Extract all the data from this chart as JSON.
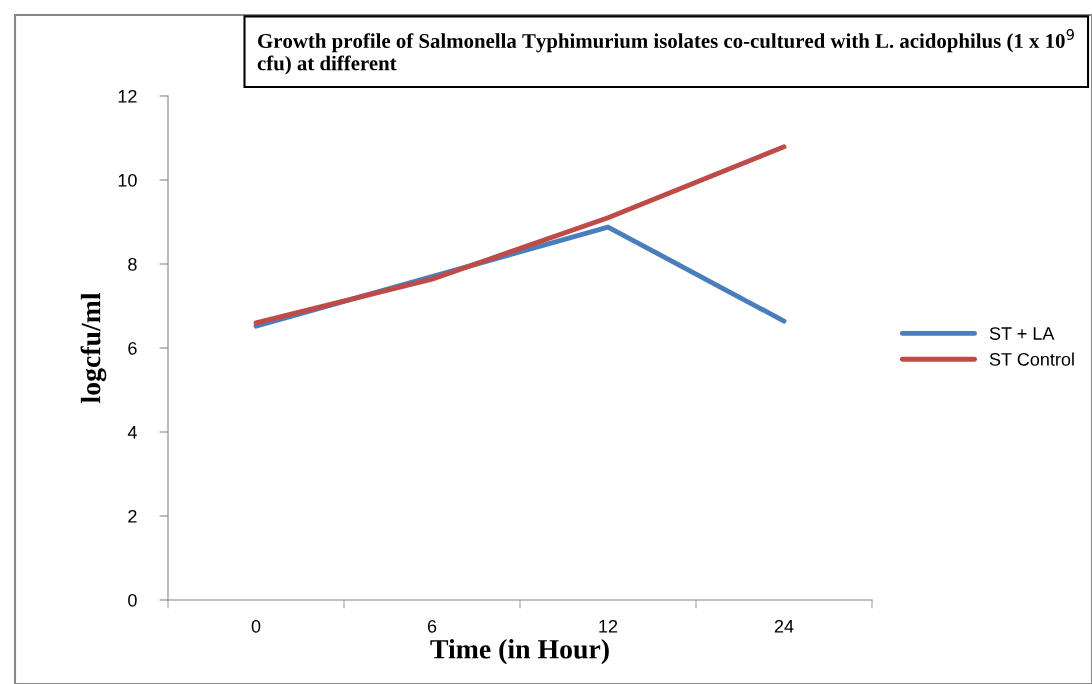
{
  "chart_data": {
    "type": "line",
    "title": "Growth profile of Salmonella Typhimurium isolates co-cultured with L. acidophilus (1 x 10$^{9}$ cfu) at different",
    "xlabel": "Time (in Hour)",
    "ylabel": "logcfu/ml",
    "categories": [
      "0",
      "6",
      "12",
      "24"
    ],
    "series": [
      {
        "name": "ST + LA",
        "color": "#4a7ebb",
        "values": [
          6.52,
          7.7,
          8.88,
          6.64
        ]
      },
      {
        "name": "ST Control",
        "color": "#be4b48",
        "values": [
          6.6,
          7.64,
          9.1,
          10.79
        ]
      }
    ],
    "ylim": [
      0,
      12
    ],
    "yticks": [
      0,
      2,
      4,
      6,
      8,
      10,
      12
    ],
    "grid": false,
    "legend": "right",
    "marker": "none",
    "line_style": "solid"
  }
}
